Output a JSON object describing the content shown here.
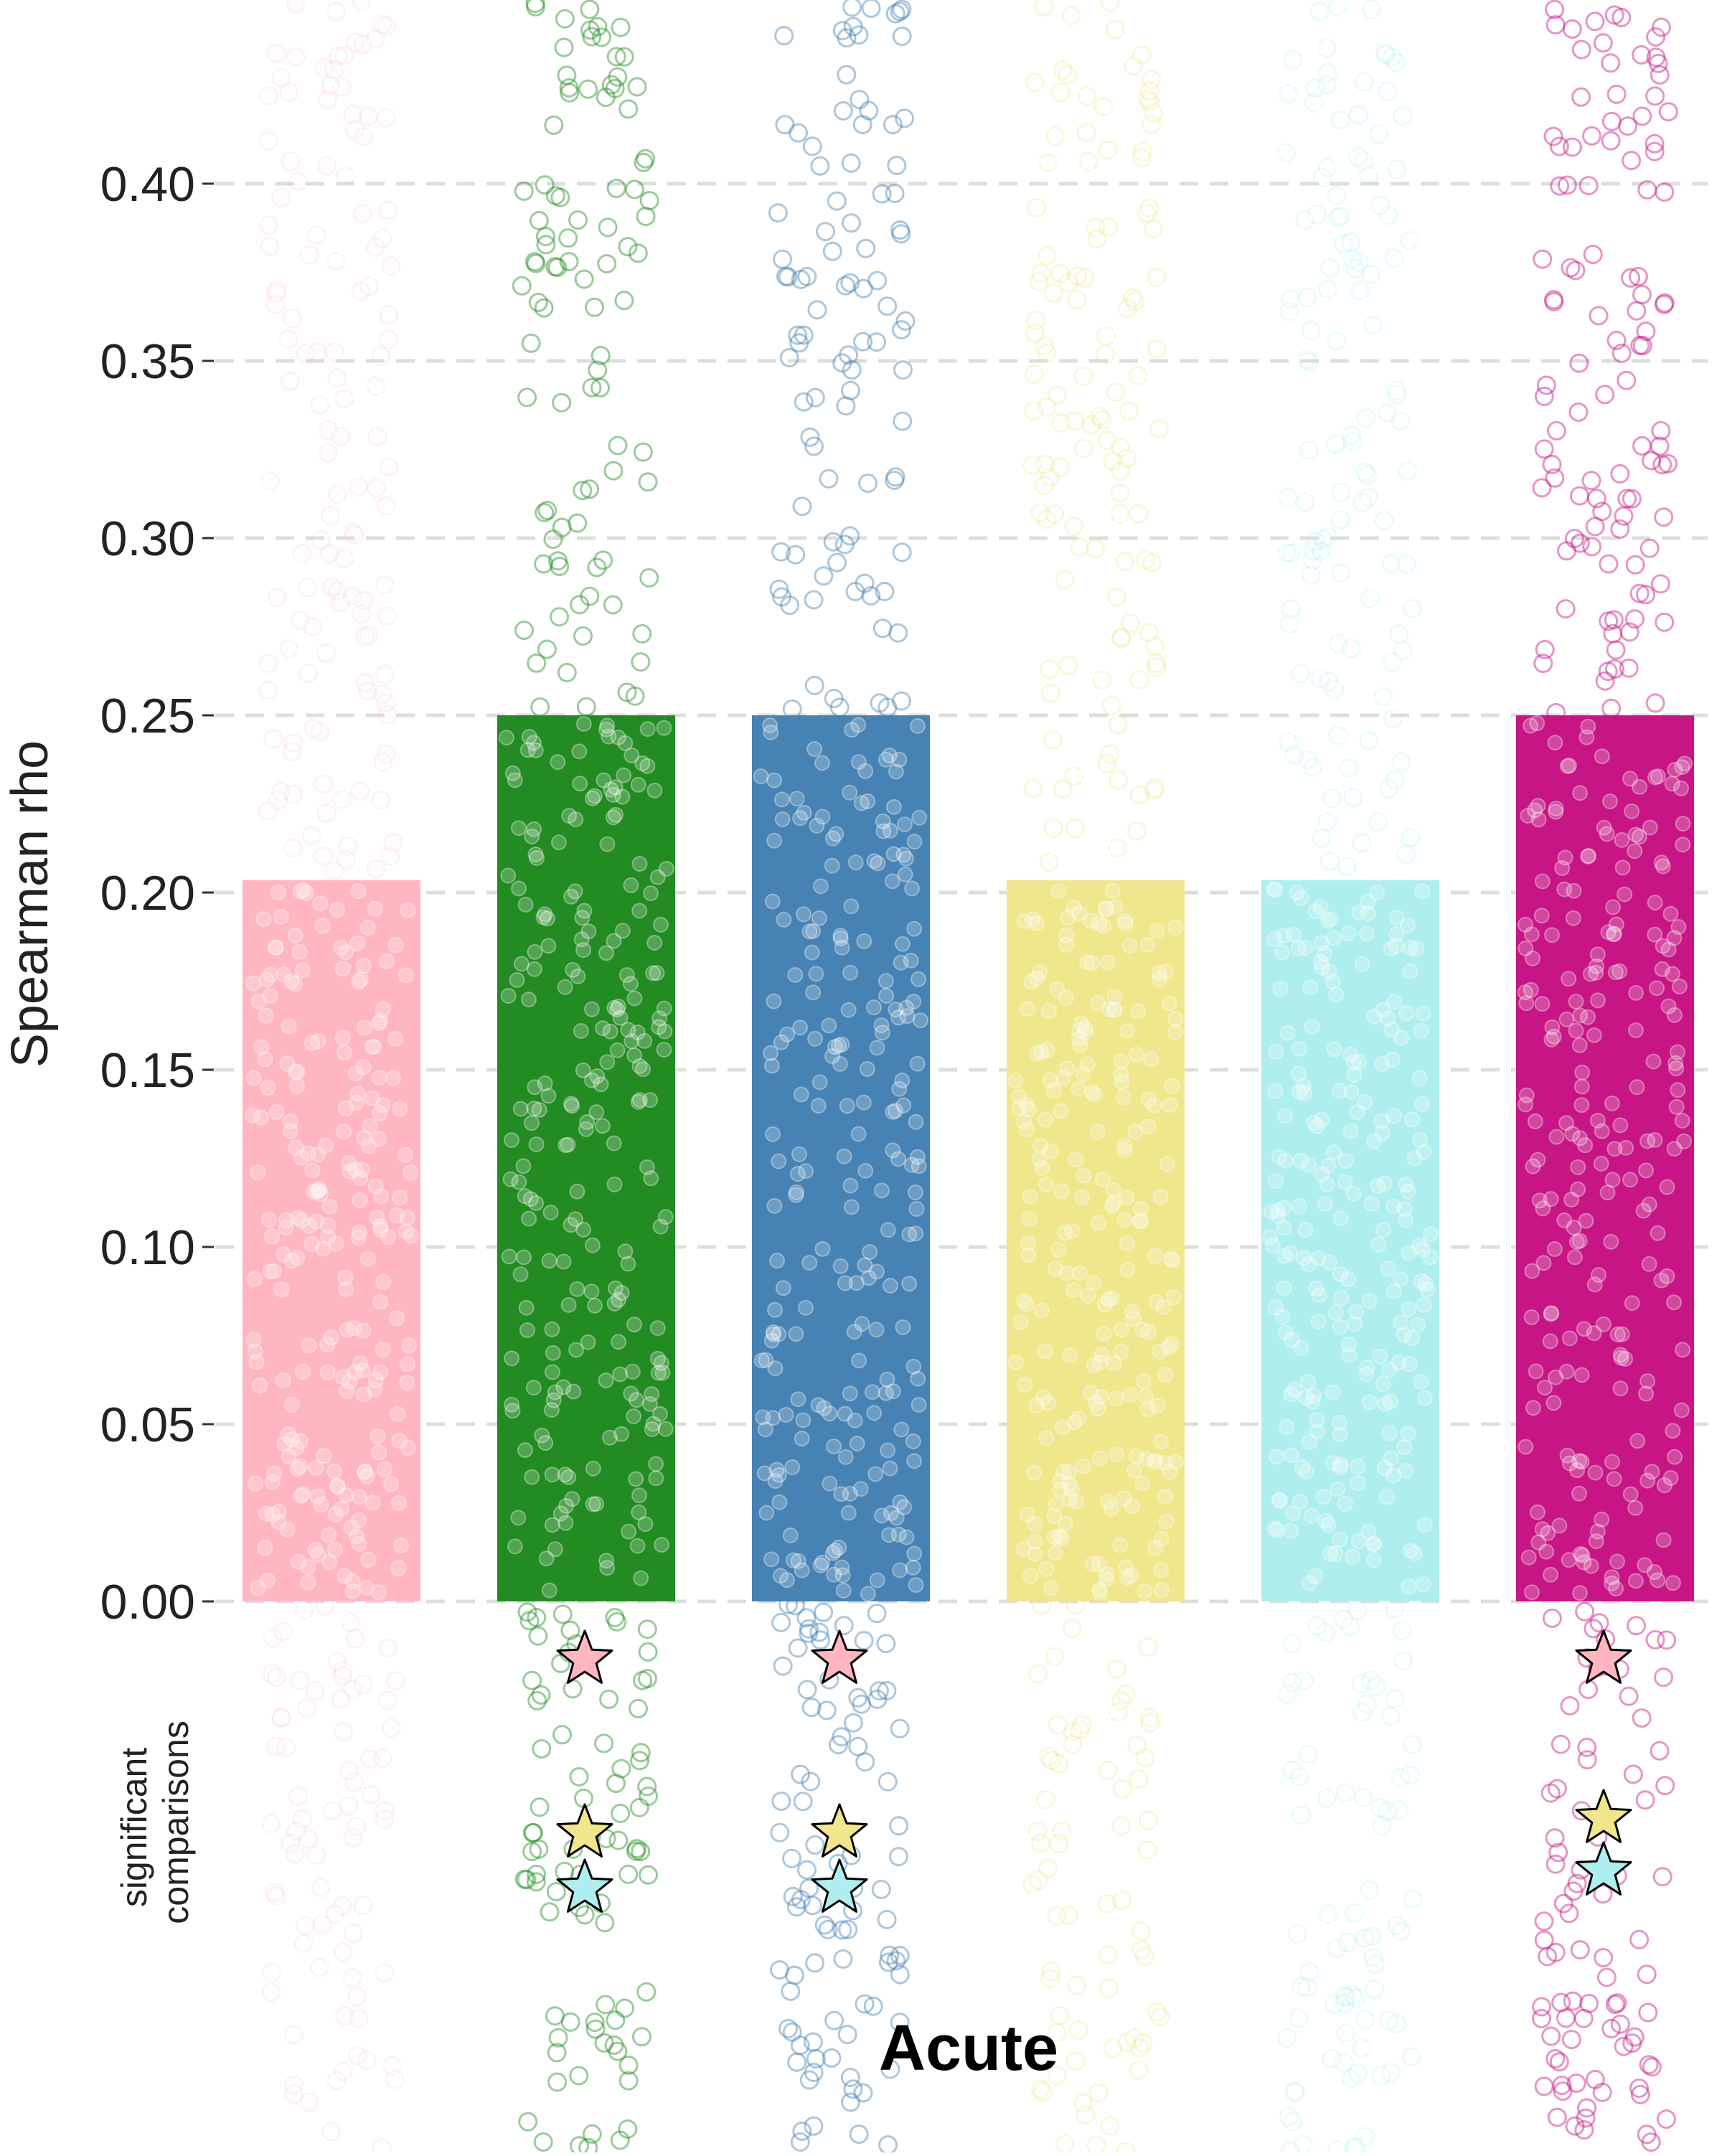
{
  "chart_data": {
    "type": "bar",
    "title": "",
    "xlabel": "Acute",
    "ylabel": "Spearman rho",
    "ylim": [
      0,
      0.45
    ],
    "yticks": [
      "0.00",
      "0.05",
      "0.10",
      "0.15",
      "0.20",
      "0.25",
      "0.30",
      "0.35",
      "0.40"
    ],
    "grid": true,
    "legend": "none",
    "categories": [
      "",
      "",
      "",
      "",
      "",
      ""
    ],
    "values": [
      0.2035,
      0.25,
      0.25,
      0.2035,
      0.2035,
      0.25
    ],
    "colors": [
      "#ffb6c1",
      "#228b22",
      "#4682b4",
      "#f0e68c",
      "#afeeee",
      "#c71585"
    ],
    "point_opacity": [
      0.18,
      0.45,
      0.45,
      0.3,
      0.25,
      0.45
    ],
    "significance_label": "significant comparisons",
    "significance_markers": [
      {
        "bar": 1,
        "stars": [
          "#ffb6c1",
          "#f0e68c",
          "#afeeee"
        ]
      },
      {
        "bar": 2,
        "stars": [
          "#ffb6c1",
          "#f0e68c",
          "#afeeee"
        ]
      },
      {
        "bar": 5,
        "stars": [
          "#ffb6c1",
          "#f0e68c",
          "#afeeee"
        ]
      }
    ]
  }
}
